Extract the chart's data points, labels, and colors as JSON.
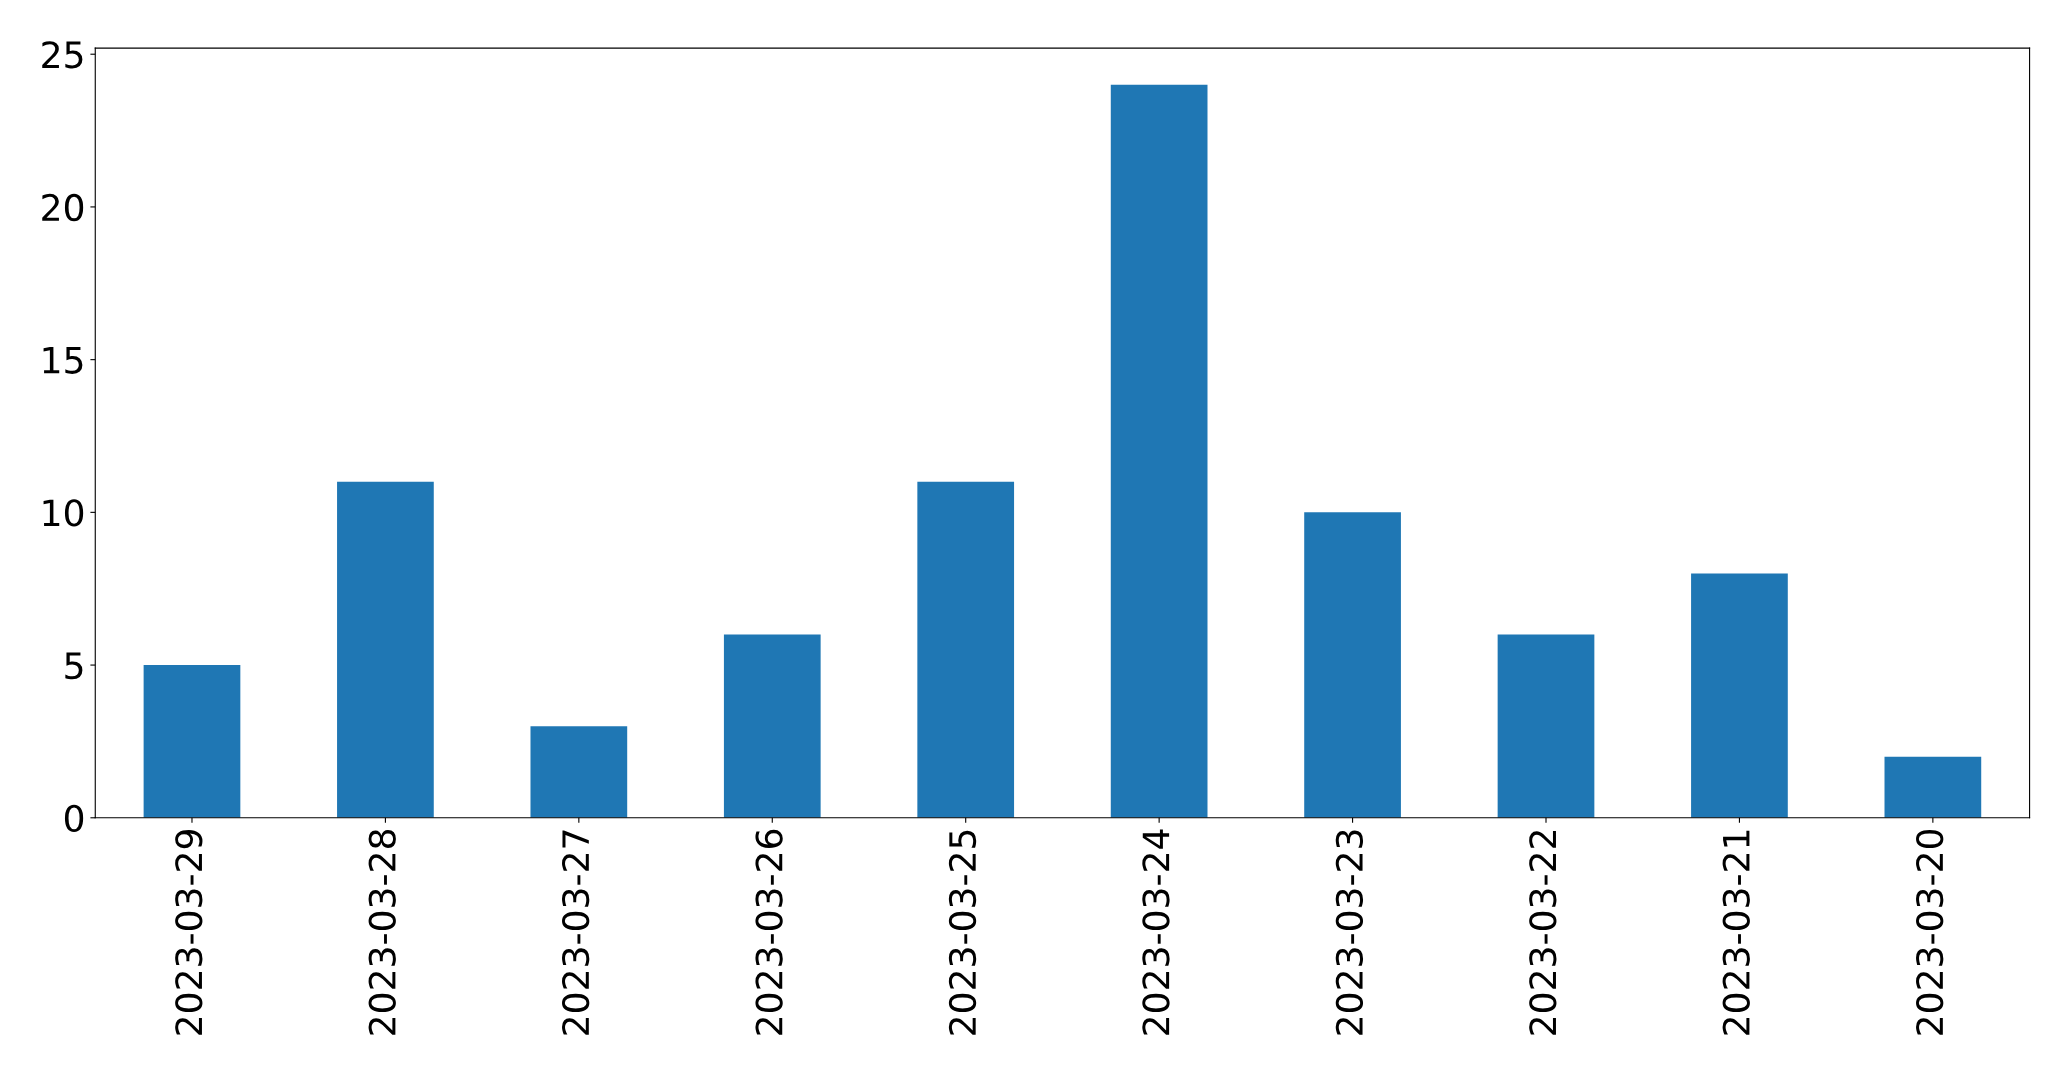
{
  "chart_data": {
    "type": "bar",
    "categories": [
      "2023-03-29",
      "2023-03-28",
      "2023-03-27",
      "2023-03-26",
      "2023-03-25",
      "2023-03-24",
      "2023-03-23",
      "2023-03-22",
      "2023-03-21",
      "2023-03-20"
    ],
    "values": [
      5,
      11,
      3,
      6,
      11,
      24,
      10,
      6,
      8,
      2
    ],
    "color": "#1f77b4",
    "ylim": [
      0,
      25.2
    ],
    "yticks": [
      0,
      5,
      10,
      15,
      20,
      25
    ],
    "grid": false,
    "legend": false
  }
}
